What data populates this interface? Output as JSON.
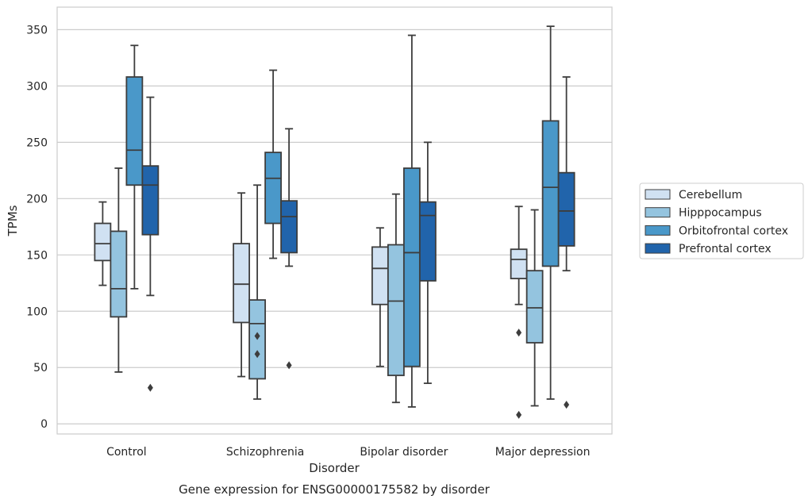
{
  "chart_data": {
    "type": "box",
    "xlabel": "Disorder",
    "ylabel": "TPMs",
    "caption": "Gene expression for ENSG00000175582 by disorder",
    "ylim": [
      -9,
      370
    ],
    "yticks": [
      0,
      50,
      100,
      150,
      200,
      250,
      300,
      350
    ],
    "grid": "horizontal",
    "legend_position": "right",
    "categories": [
      "Control",
      "Schizophrenia",
      "Bipolar disorder",
      "Major depression"
    ],
    "series": [
      {
        "name": "Cerebellum",
        "color": "#d0e1f2",
        "boxes": [
          {
            "whisker_low": 123,
            "q1": 145,
            "median": 160,
            "q3": 178,
            "whisker_high": 197,
            "outliers": []
          },
          {
            "whisker_low": 42,
            "q1": 90,
            "median": 124,
            "q3": 160,
            "whisker_high": 205,
            "outliers": []
          },
          {
            "whisker_low": 51,
            "q1": 106,
            "median": 138,
            "q3": 157,
            "whisker_high": 174,
            "outliers": []
          },
          {
            "whisker_low": 106,
            "q1": 129,
            "median": 146,
            "q3": 155,
            "whisker_high": 193,
            "outliers": [
              81,
              8
            ]
          }
        ]
      },
      {
        "name": "Hipppocampus",
        "color": "#94c4df",
        "boxes": [
          {
            "whisker_low": 46,
            "q1": 95,
            "median": 120,
            "q3": 171,
            "whisker_high": 227,
            "outliers": []
          },
          {
            "whisker_low": 22,
            "q1": 40,
            "median": 89,
            "q3": 110,
            "whisker_high": 212,
            "outliers": [
              78,
              62
            ]
          },
          {
            "whisker_low": 19,
            "q1": 43,
            "median": 109,
            "q3": 159,
            "whisker_high": 204,
            "outliers": []
          },
          {
            "whisker_low": 16,
            "q1": 72,
            "median": 103,
            "q3": 136,
            "whisker_high": 190,
            "outliers": []
          }
        ]
      },
      {
        "name": "Orbitofrontal cortex",
        "color": "#4a98c9",
        "boxes": [
          {
            "whisker_low": 120,
            "q1": 212,
            "median": 243,
            "q3": 308,
            "whisker_high": 336,
            "outliers": []
          },
          {
            "whisker_low": 147,
            "q1": 178,
            "median": 218,
            "q3": 241,
            "whisker_high": 314,
            "outliers": []
          },
          {
            "whisker_low": 15,
            "q1": 51,
            "median": 152,
            "q3": 227,
            "whisker_high": 345,
            "outliers": []
          },
          {
            "whisker_low": 22,
            "q1": 140,
            "median": 210,
            "q3": 269,
            "whisker_high": 353,
            "outliers": []
          }
        ]
      },
      {
        "name": "Prefrontal cortex",
        "color": "#2164ab",
        "boxes": [
          {
            "whisker_low": 114,
            "q1": 168,
            "median": 212,
            "q3": 229,
            "whisker_high": 290,
            "outliers": [
              32
            ]
          },
          {
            "whisker_low": 140,
            "q1": 152,
            "median": 184,
            "q3": 198,
            "whisker_high": 262,
            "outliers": [
              52
            ]
          },
          {
            "whisker_low": 36,
            "q1": 127,
            "median": 185,
            "q3": 197,
            "whisker_high": 250,
            "outliers": []
          },
          {
            "whisker_low": 136,
            "q1": 158,
            "median": 189,
            "q3": 223,
            "whisker_high": 308,
            "outliers": [
              17
            ]
          }
        ]
      }
    ]
  }
}
